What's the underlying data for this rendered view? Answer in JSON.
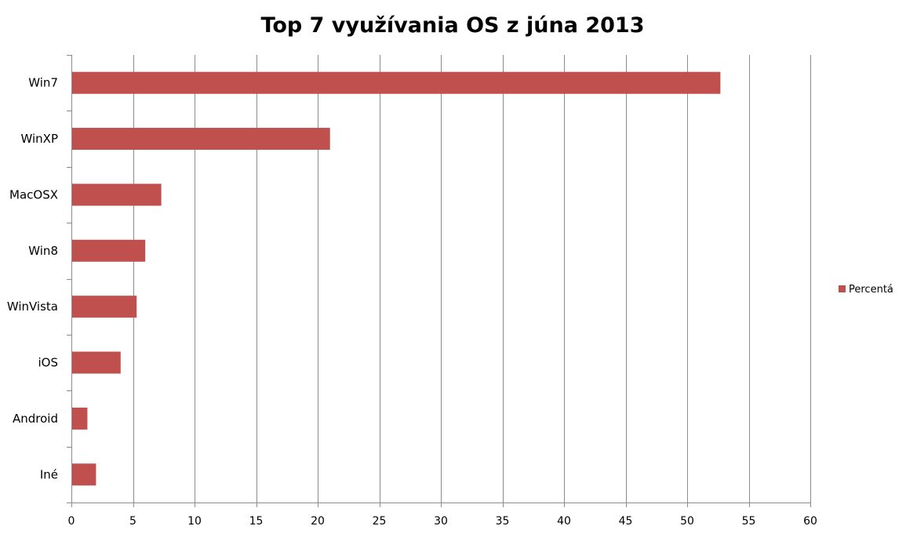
{
  "chart_data": {
    "type": "bar",
    "orientation": "horizontal",
    "title": "Top 7 využívania OS z júna 2013",
    "categories": [
      "Win7",
      "WinXP",
      "MacOSX",
      "Win8",
      "WinVista",
      "iOS",
      "Android",
      "Iné"
    ],
    "series": [
      {
        "name": "Percentá",
        "color": "#c0504d",
        "values": [
          52.7,
          21.0,
          7.3,
          6.0,
          5.3,
          4.0,
          1.3,
          2.0
        ]
      }
    ],
    "xlim": [
      0,
      60
    ],
    "xticks": [
      "0",
      "5",
      "10",
      "15",
      "20",
      "25",
      "30",
      "35",
      "40",
      "45",
      "50",
      "55",
      "60"
    ],
    "xlabel": "",
    "ylabel": "",
    "grid": "vertical",
    "legend": "right"
  }
}
